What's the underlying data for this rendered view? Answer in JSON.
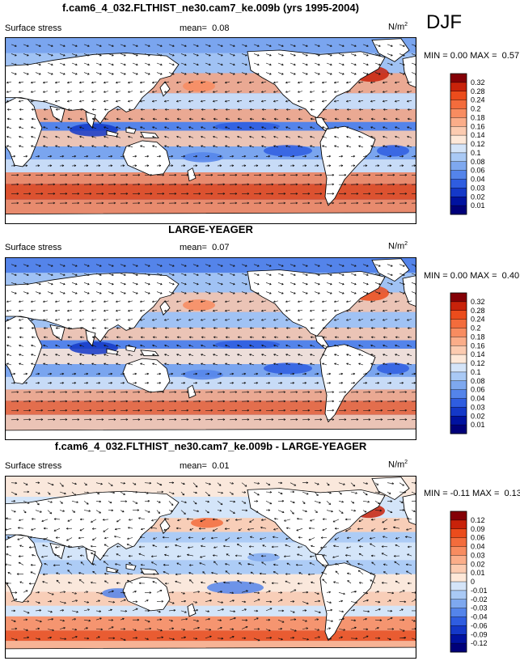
{
  "season": "DJF",
  "panels": [
    {
      "title": "f.cam6_4_032.FLTHIST_ne30.cam7_ke.009b (yrs 1995-2004)",
      "variable": "Surface stress",
      "mean_label": "mean=",
      "mean": "0.08",
      "units": "N/m",
      "units_sup": "2",
      "min_label": "MIN =",
      "min": "0.00",
      "max_label": "MAX =",
      "max": "0.57",
      "levels": [
        "0.32",
        "0.28",
        "0.24",
        "0.2",
        "0.18",
        "0.16",
        "0.14",
        "0.12",
        "0.1",
        "0.08",
        "0.06",
        "0.04",
        "0.03",
        "0.02",
        "0.01"
      ],
      "colors": [
        "#840006",
        "#c8220a",
        "#eb4c1c",
        "#f36c3c",
        "#f88c60",
        "#fbad89",
        "#fccbb0",
        "#fee8d8",
        "#d4e4f8",
        "#a9c9f5",
        "#7ea8ef",
        "#5484ea",
        "#2f5de0",
        "#1438c8",
        "#0012a0",
        "#00007a"
      ]
    },
    {
      "title": "LARGE-YEAGER",
      "variable": "Surface stress",
      "mean_label": "mean=",
      "mean": "0.07",
      "units": "N/m",
      "units_sup": "2",
      "min_label": "MIN =",
      "min": "0.00",
      "max_label": "MAX =",
      "max": "0.40",
      "levels": [
        "0.32",
        "0.28",
        "0.24",
        "0.2",
        "0.18",
        "0.16",
        "0.14",
        "0.12",
        "0.1",
        "0.08",
        "0.06",
        "0.04",
        "0.03",
        "0.02",
        "0.01"
      ],
      "colors": [
        "#840006",
        "#c8220a",
        "#eb4c1c",
        "#f36c3c",
        "#f88c60",
        "#fbad89",
        "#fccbb0",
        "#fee8d8",
        "#d4e4f8",
        "#a9c9f5",
        "#7ea8ef",
        "#5484ea",
        "#2f5de0",
        "#1438c8",
        "#0012a0",
        "#00007a"
      ]
    },
    {
      "title": "f.cam6_4_032.FLTHIST_ne30.cam7_ke.009b - LARGE-YEAGER",
      "variable": "Surface stress",
      "mean_label": "mean=",
      "mean": "0.01",
      "units": "N/m",
      "units_sup": "2",
      "min_label": "MIN =",
      "min": "-0.11",
      "max_label": "MAX =",
      "max": "0.13",
      "levels": [
        "0.12",
        "0.09",
        "0.06",
        "0.04",
        "0.03",
        "0.02",
        "0.01",
        "0",
        "-0.01",
        "-0.02",
        "-0.03",
        "-0.04",
        "-0.06",
        "-0.09",
        "-0.12"
      ],
      "colors": [
        "#840006",
        "#c8220a",
        "#eb4c1c",
        "#f36c3c",
        "#f88c60",
        "#fbad89",
        "#fccbb0",
        "#fee8d8",
        "#d4e4f8",
        "#a9c9f5",
        "#7ea8ef",
        "#5484ea",
        "#2f5de0",
        "#1438c8",
        "#0012a0",
        "#00007a"
      ]
    }
  ]
}
